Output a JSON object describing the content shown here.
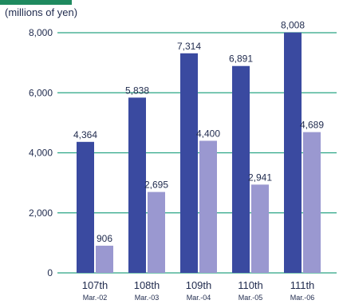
{
  "chart_data": {
    "type": "bar",
    "unit_label": "(millions of yen)",
    "categories": [
      {
        "period": "107th",
        "date": "Mar.-02"
      },
      {
        "period": "108th",
        "date": "Mar.-03"
      },
      {
        "period": "109th",
        "date": "Mar.-04"
      },
      {
        "period": "110th",
        "date": "Mar.-05"
      },
      {
        "period": "111th",
        "date": "Mar.-06"
      }
    ],
    "series": [
      {
        "values": [
          4364,
          5838,
          7314,
          6891,
          8008
        ],
        "labels": [
          "4,364",
          "5,838",
          "7,314",
          "6,891",
          "8,008"
        ],
        "color": "#3a4aa0"
      },
      {
        "values": [
          906,
          2695,
          4400,
          2941,
          4689
        ],
        "labels": [
          "906",
          "2,695",
          "4,400",
          "2,941",
          "4,689"
        ],
        "color": "#9a98d0"
      }
    ],
    "ylim": [
      0,
      8000
    ],
    "yticks": [
      0,
      2000,
      4000,
      6000,
      8000
    ],
    "ytick_labels": [
      "0",
      "2,000",
      "4,000",
      "6,000",
      "8,000"
    ],
    "gridline_color": "#2aa585",
    "legend": "none"
  }
}
